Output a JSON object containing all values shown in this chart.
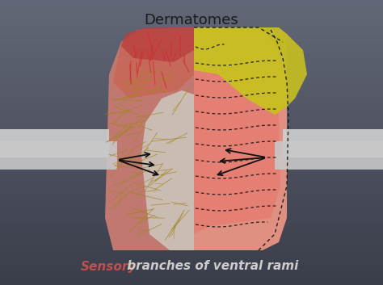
{
  "title": "Dermatomes",
  "title_fontsize": 13,
  "title_color": "#1a1a1a",
  "bg_color": "#636878",
  "bg_color_bottom": "#3a3d4a",
  "subtitle_sensory_color": "#c0504d",
  "subtitle_rest_color": "#cccccc",
  "subtitle_fontsize": 11,
  "arm_color": "#d8d8d8",
  "left_body_main": "#c07870",
  "left_body_lower": "#b09090",
  "left_body_mid_white": "#ddd8d0",
  "right_body_pink": "#e09088",
  "right_body_bright": "#e87870",
  "shoulder_yellow": "#c8c020",
  "shoulder_yellow2": "#b8a818",
  "red_muscle_top": "#cc3030",
  "nerve_gold": "#a08820",
  "dashed_color": "#111111",
  "arrow_color": "#111111",
  "fig_width": 4.74,
  "fig_height": 3.53,
  "dpi": 100
}
